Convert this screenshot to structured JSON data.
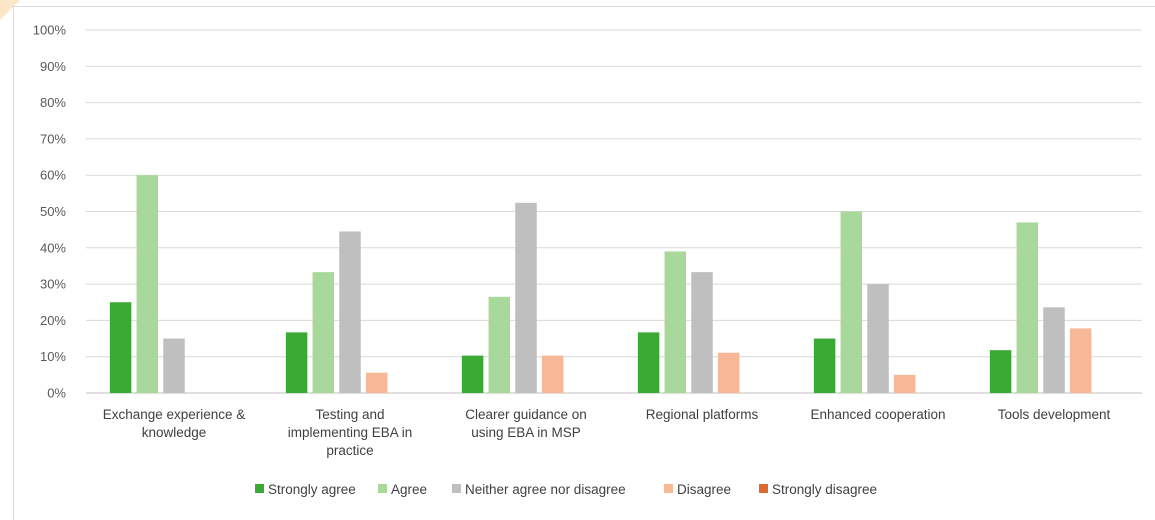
{
  "chart_data": {
    "type": "bar",
    "categories": [
      [
        "Exchange experience &",
        "knowledge"
      ],
      [
        "Testing and",
        "implementing EBA in",
        "practice"
      ],
      [
        "Clearer guidance on",
        "using EBA in MSP"
      ],
      [
        "Regional platforms"
      ],
      [
        "Enhanced cooperation"
      ],
      [
        "Tools development"
      ]
    ],
    "series": [
      {
        "name": "Strongly agree",
        "color": "#3aaa35",
        "values": [
          25,
          16.7,
          10.3,
          16.7,
          15,
          11.8
        ]
      },
      {
        "name": "Agree",
        "color": "#a9d99a",
        "values": [
          60,
          33.3,
          26.5,
          39,
          50,
          47
        ]
      },
      {
        "name": "Neither agree nor disagree",
        "color": "#bfbfbf",
        "values": [
          15,
          44.5,
          52.4,
          33.3,
          30,
          23.6
        ]
      },
      {
        "name": "Disagree",
        "color": "#f7b897",
        "values": [
          0,
          5.6,
          10.3,
          11.1,
          5,
          17.8
        ]
      },
      {
        "name": "Strongly disagree",
        "color": "#e0692e",
        "values": [
          0,
          0,
          0,
          0,
          0,
          0
        ]
      }
    ],
    "ylim": [
      0,
      100
    ],
    "yticks": [
      "0%",
      "10%",
      "20%",
      "30%",
      "40%",
      "50%",
      "60%",
      "70%",
      "80%",
      "90%",
      "100%"
    ],
    "grid": true,
    "legend": "bottom"
  }
}
